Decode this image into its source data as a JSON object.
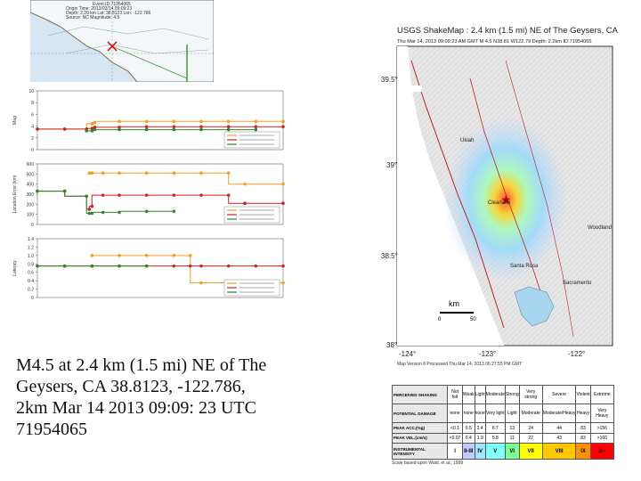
{
  "caption": {
    "lines": [
      "M4.5 at 2.4 km (1.5 mi) NE of The",
      "Geysers, CA 38.8123, -122.786,",
      "2km Mar 14 2013 09:09: 23 UTC",
      "71954065"
    ]
  },
  "shakemap": {
    "title": "USGS ShakeMap : 2.4 km (1.5 mi) NE of The Geysers, CA",
    "subtitle": "Thu Mar 14, 2013 09:09:23 AM GMT  M 4.5  N38.81 W122.79  Depth: 2.2km  ID:71954065",
    "lat_labels": [
      "39.5°",
      "39°",
      "38.5°",
      "38°"
    ],
    "lon_labels": [
      "-124°",
      "-123°",
      "-122°"
    ],
    "cities": [
      "Ukiah",
      "Clearlake",
      "Woodland",
      "Santa Rosa",
      "Sacramento"
    ],
    "scale_unit": "km",
    "scale_ticks": [
      "0",
      "50"
    ],
    "processed_note": "Map Version 8 Processed Thu Mar 14, 2013 06:27:55 PM GMT"
  },
  "intensity_table": {
    "rows": [
      {
        "header": "PERCEIVED SHAKING",
        "cells": [
          "Not felt",
          "Weak",
          "Light",
          "Moderate",
          "Strong",
          "Very strong",
          "Severe",
          "Violent",
          "Extreme"
        ]
      },
      {
        "header": "POTENTIAL DAMAGE",
        "cells": [
          "none",
          "none",
          "none",
          "Very light",
          "Light",
          "Moderate",
          "Moderate/Heavy",
          "Heavy",
          "Very Heavy"
        ]
      },
      {
        "header": "PEAK ACC.(%g)",
        "cells": [
          "<0.1",
          "0.5",
          "2.4",
          "6.7",
          "13",
          "24",
          "44",
          "83",
          ">156"
        ]
      },
      {
        "header": "PEAK VEL.(cm/s)",
        "cells": [
          "<0.07",
          "0.4",
          "1.9",
          "5.8",
          "11",
          "22",
          "43",
          "83",
          ">160"
        ]
      },
      {
        "header": "INSTRUMENTAL INTENSITY",
        "cells": [
          "I",
          "II-III",
          "IV",
          "V",
          "VI",
          "VII",
          "VIII",
          "IX",
          "X+"
        ]
      }
    ],
    "colors": [
      "#ffffff",
      "#bfccff",
      "#a0e6ff",
      "#80ffff",
      "#7aff93",
      "#ffff00",
      "#ffc800",
      "#ff9100",
      "#ff0000"
    ],
    "scale_note": "Scale based upon Wald, et al.; 1999"
  },
  "plots": {
    "top_map": {
      "header_lines": [
        "Event ID 71954065",
        "Origin Time: 2013/03/14 09:09:23",
        "Depth: 2.20 km   Lat: 38.8123   Lon: -122.786",
        "Source: NC   Magnitude: 4.5"
      ]
    },
    "chart_data": [
      {
        "type": "line",
        "ylabel": "Mag",
        "y_ticks": [
          "0",
          "2",
          "4",
          "6",
          "8",
          "10"
        ],
        "ylim": [
          0,
          10
        ],
        "x": [
          0,
          5,
          9,
          10,
          10.5,
          15,
          20,
          25,
          30,
          35,
          40,
          45
        ],
        "series": [
          {
            "color": "#f0a020",
            "values": [
              3.5,
              3.5,
              3.5,
              4.4,
              4.6,
              4.8,
              4.8,
              4.8,
              4.8,
              4.8,
              4.8,
              4.8
            ]
          },
          {
            "color": "#cc2222",
            "values": [
              3.5,
              3.5,
              3.5,
              3.6,
              3.8,
              3.8,
              3.9,
              3.9,
              3.9,
              3.9,
              3.9,
              3.9
            ]
          },
          {
            "color": "#2a8a2a",
            "values": [
              null,
              null,
              3.2,
              3.2,
              3.4,
              3.4,
              3.4,
              3.4,
              3.4,
              3.4,
              3.4,
              null
            ]
          }
        ]
      },
      {
        "type": "line",
        "ylabel": "Location Error (km)",
        "y_ticks": [
          "0",
          "100",
          "200",
          "300",
          "400",
          "500",
          "600"
        ],
        "ylim": [
          0,
          600
        ],
        "x": [
          0,
          5,
          9,
          9.5,
          10,
          12,
          15,
          20,
          25,
          30,
          35,
          38,
          45
        ],
        "series": [
          {
            "color": "#f0a020",
            "values": [
              null,
              null,
              null,
              510,
              510,
              510,
              510,
              510,
              510,
              510,
              510,
              400,
              400
            ]
          },
          {
            "color": "#cc2222",
            "values": [
              330,
              330,
              280,
              150,
              180,
              290,
              290,
              290,
              290,
              290,
              290,
              210,
              210
            ]
          },
          {
            "color": "#2a8a2a",
            "values": [
              330,
              330,
              280,
              110,
              110,
              120,
              120,
              130,
              130,
              null,
              null,
              null,
              null
            ]
          }
        ]
      },
      {
        "type": "line",
        "ylabel": "Latency",
        "y_ticks": [
          "0",
          "0.2",
          "0.4",
          "0.6",
          "0.8",
          "1.0",
          "1.2",
          "1.4"
        ],
        "ylim": [
          0,
          1.4
        ],
        "x": [
          0,
          5,
          10,
          15,
          20,
          25,
          28,
          30,
          35,
          40,
          45
        ],
        "series": [
          {
            "color": "#f0a020",
            "values": [
              null,
              null,
              1.0,
              1.0,
              1.0,
              1.0,
              1.0,
              0.35,
              0.35,
              0.35,
              0.35
            ]
          },
          {
            "color": "#cc2222",
            "values": [
              0.75,
              0.75,
              0.75,
              0.75,
              0.75,
              0.75,
              0.75,
              0.75,
              0.75,
              0.75,
              0.75
            ]
          },
          {
            "color": "#2a8a2a",
            "values": [
              0.75,
              0.75,
              0.75,
              0.75,
              0.75,
              null,
              null,
              null,
              null,
              null,
              null
            ]
          }
        ]
      }
    ]
  }
}
